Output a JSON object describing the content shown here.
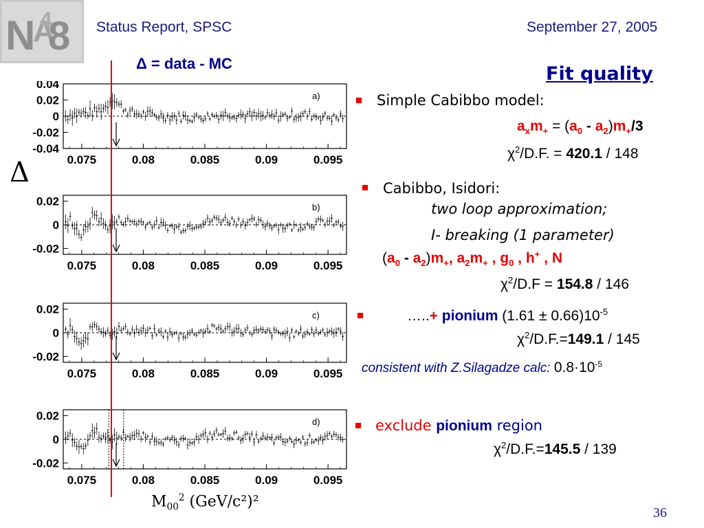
{
  "header": {
    "left": "Status Report, SPSC",
    "right": "September 27, 2005",
    "logo_text": "NA48"
  },
  "left_title": "Δ = data - MC",
  "delta_axis_symbol": "Δ",
  "x_axis_label_main": "M",
  "x_axis_label_sub": "00",
  "x_axis_label_sup": "2",
  "x_axis_label_unit": "(GeV/c²)²",
  "fit_title": "Fit quality",
  "fits": {
    "f1": {
      "label": "Simple Cabibbo model:",
      "formula": {
        "a1": "a",
        "a1s": "x",
        "m1": "m",
        "m1s": "+",
        "eq": " = (",
        "a2": "a",
        "a2s": "0",
        "minus": " - ",
        "a3": "a",
        "a3s": "2",
        "close": ")",
        "m2": "m",
        "m2s": "+",
        "div": "/3"
      },
      "chi_pre": "χ",
      "chi_sup": "2",
      "chi_mid": "/D.F. = ",
      "chi_val": "420.1",
      "chi_dof": " / 148"
    },
    "f2": {
      "label": "Cabibbo, Isidori:",
      "line2": "two loop approximation;",
      "line3": "I- breaking (1 parameter)",
      "params": {
        "open": "(",
        "a0": "a",
        "a0s": "0",
        "minus": " - ",
        "a2": "a",
        "a2s": "2",
        "close": ")",
        "m": "m",
        "ms": "+",
        "comma1": ", ",
        "a2b": "a",
        "a2bs": "2",
        "m2": "m",
        "m2s": "+",
        "comma2": " , ",
        "g": "g",
        "gs": "0",
        "comma3": " , ",
        "h": "h",
        "hs": "+",
        "comma4": " ,  ",
        "N": "N"
      },
      "chi_pre": "χ",
      "chi_sup": "2",
      "chi_mid": "/D.F = ",
      "chi_val": "154.8",
      "chi_dof": " / 146"
    },
    "f3": {
      "dots": "…..",
      "plus": "+ ",
      "pionium": "pionium",
      "value": "  (1.61 ± 0.66)10",
      "value_sup": "-5",
      "chi_pre": "χ",
      "chi_sup": "2",
      "chi_mid": "/D.F.=",
      "chi_val": "149.1",
      "chi_dof": " / 145",
      "note": "consistent with Z.Silagadze calc: ",
      "note_val": "0.8·10",
      "note_sup": "-5"
    },
    "f4": {
      "exclude": "exclude ",
      "pionium": "pionium",
      "region": " region",
      "chi_pre": "χ",
      "chi_sup": "2",
      "chi_mid": "/D.F.=",
      "chi_val": "145.5",
      "chi_dof": " / 139"
    }
  },
  "page_number": "36",
  "colors": {
    "accent": "#00008b",
    "bullet": "#e60000",
    "header": "#1a1a7e"
  },
  "chart_data": [
    {
      "type": "scatter",
      "panel_label": "a)",
      "x_ticks": [
        "0.075",
        "0.08",
        "0.085",
        "0.09",
        "0.095"
      ],
      "y_ticks": [
        "0.04",
        "0.02",
        "0",
        "-0.02",
        "-0.04"
      ],
      "xlim": [
        0.0735,
        0.0965
      ],
      "ylim": [
        -0.04,
        0.04
      ],
      "x_tick_values": [
        0.075,
        0.08,
        0.085,
        0.09,
        0.095
      ],
      "y_tick_values": [
        0.04,
        0.02,
        0,
        -0.02,
        -0.04
      ],
      "x": [
        0.074,
        0.076,
        0.077,
        0.0775,
        0.078,
        0.079,
        0.081,
        0.084,
        0.087,
        0.09,
        0.093,
        0.096
      ],
      "y": [
        0.002,
        0.005,
        0.012,
        0.024,
        0.014,
        0.004,
        0.001,
        -0.002,
        0.003,
        -0.001,
        0.002,
        -0.003
      ],
      "marker": [
        0.0778,
        0.0778
      ]
    },
    {
      "type": "scatter",
      "panel_label": "b)",
      "x_ticks": [
        "0.075",
        "0.08",
        "0.085",
        "0.09",
        "0.095"
      ],
      "y_ticks": [
        "0.02",
        "0",
        "-0.02"
      ],
      "xlim": [
        0.0735,
        0.0965
      ],
      "ylim": [
        -0.025,
        0.025
      ],
      "x_tick_values": [
        0.075,
        0.08,
        0.085,
        0.09,
        0.095
      ],
      "y_tick_values": [
        0.02,
        0,
        -0.02
      ],
      "x": [
        0.074,
        0.075,
        0.076,
        0.077,
        0.078,
        0.08,
        0.083,
        0.086,
        0.089,
        0.092,
        0.095,
        0.096
      ],
      "y": [
        0.006,
        -0.01,
        0.01,
        -0.002,
        0.004,
        0.002,
        -0.003,
        0.005,
        0.002,
        -0.002,
        0.003,
        0.0
      ],
      "marker": [
        0.0778,
        0.0778
      ]
    },
    {
      "type": "scatter",
      "panel_label": "c)",
      "x_ticks": [
        "0.075",
        "0.08",
        "0.085",
        "0.09",
        "0.095"
      ],
      "y_ticks": [
        "0.02",
        "0",
        "-0.02"
      ],
      "xlim": [
        0.0735,
        0.0965
      ],
      "ylim": [
        -0.025,
        0.025
      ],
      "x_tick_values": [
        0.075,
        0.08,
        0.085,
        0.09,
        0.095
      ],
      "y_tick_values": [
        0.02,
        0,
        -0.02
      ],
      "x": [
        0.074,
        0.075,
        0.076,
        0.077,
        0.078,
        0.08,
        0.083,
        0.086,
        0.089,
        0.092,
        0.095,
        0.096
      ],
      "y": [
        0.005,
        -0.012,
        0.008,
        0.0,
        0.003,
        0.001,
        -0.002,
        0.004,
        0.001,
        -0.001,
        0.002,
        0.0
      ],
      "marker": [
        0.0778,
        0.0778
      ]
    },
    {
      "type": "scatter",
      "panel_label": "d)",
      "x_ticks": [
        "0.075",
        "0.08",
        "0.085",
        "0.09",
        "0.095"
      ],
      "y_ticks": [
        "0.02",
        "0",
        "-0.02"
      ],
      "xlim": [
        0.0735,
        0.0965
      ],
      "ylim": [
        -0.025,
        0.025
      ],
      "x_tick_values": [
        0.075,
        0.08,
        0.085,
        0.09,
        0.095
      ],
      "y_tick_values": [
        0.02,
        0,
        -0.02
      ],
      "x": [
        0.074,
        0.075,
        0.076,
        0.077,
        0.0785,
        0.08,
        0.083,
        0.086,
        0.089,
        0.092,
        0.095,
        0.096
      ],
      "y": [
        0.006,
        -0.01,
        0.009,
        -0.001,
        0.004,
        0.002,
        -0.003,
        0.005,
        0.001,
        -0.002,
        0.002,
        0.0
      ],
      "marker": [
        0.0778,
        0.0778
      ],
      "exclusion": [
        0.0772,
        0.0784
      ]
    }
  ]
}
